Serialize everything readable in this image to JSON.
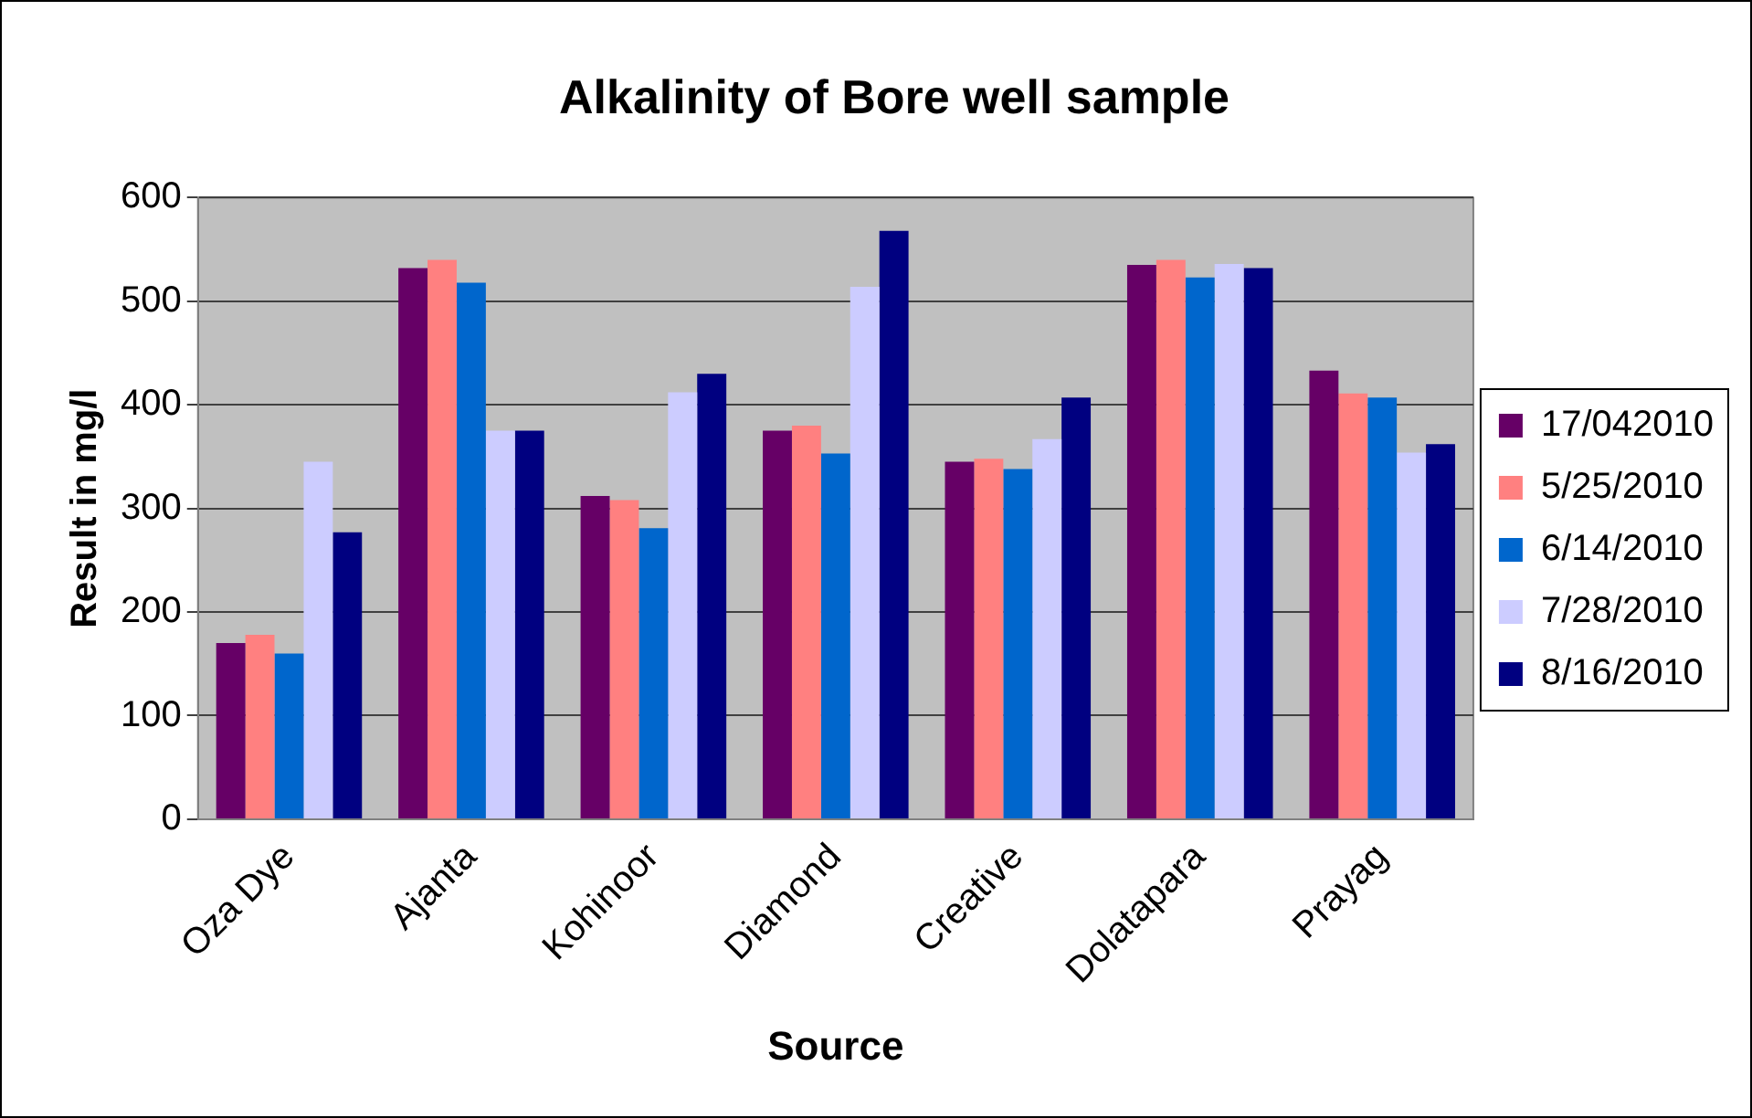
{
  "chart_data": {
    "type": "bar",
    "title": "Alkalinity of Bore well sample",
    "xlabel": "Source",
    "ylabel": "Result in mg/l",
    "categories": [
      "Oza Dye",
      "Ajanta",
      "Kohinoor",
      "Diamond",
      "Creative",
      "Dolatapara",
      "Prayag"
    ],
    "series": [
      {
        "name": "17/042010",
        "color": "#660066",
        "values": [
          170,
          532,
          312,
          375,
          345,
          535,
          433
        ]
      },
      {
        "name": "5/25/2010",
        "color": "#ff8080",
        "values": [
          178,
          540,
          308,
          380,
          348,
          540,
          411
        ]
      },
      {
        "name": "6/14/2010",
        "color": "#0066cc",
        "values": [
          160,
          518,
          281,
          353,
          338,
          523,
          407
        ]
      },
      {
        "name": "7/28/2010",
        "color": "#ccccff",
        "values": [
          345,
          375,
          412,
          514,
          367,
          536,
          354
        ]
      },
      {
        "name": "8/16/2010",
        "color": "#000080",
        "values": [
          277,
          375,
          430,
          568,
          407,
          532,
          362
        ]
      }
    ],
    "ylim": [
      0,
      600
    ],
    "yticks": [
      0,
      100,
      200,
      300,
      400,
      500,
      600
    ],
    "grid": "y",
    "legend": "right"
  }
}
